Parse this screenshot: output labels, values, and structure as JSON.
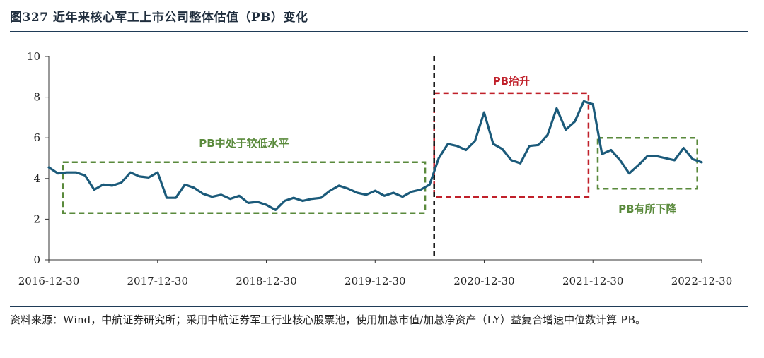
{
  "header": {
    "title": "图327 近年来核心军工上市公司整体估值（PB）变化"
  },
  "footer": {
    "source": "资料来源：Wind，中航证券研究所；采用中航证券军工行业核心股票池，使用加总市值/加总净资产（LY）益复合增速中位数计算 PB。"
  },
  "colors": {
    "line": "#1b5a7a",
    "green": "#5a8a3c",
    "red": "#c0202a",
    "axis": "#333333"
  },
  "chart_data": {
    "type": "line",
    "title": "近年来核心军工上市公司整体估值（PB）变化",
    "xlabel": "",
    "ylabel": "",
    "ylim": [
      0,
      10
    ],
    "yticks": [
      "0",
      "2",
      "4",
      "6",
      "8",
      "10"
    ],
    "x_start": "2016-12-30",
    "x_end": "2022-12-30",
    "xticks": [
      "2016-12-30",
      "2017-12-30",
      "2018-12-30",
      "2019-12-30",
      "2020-12-30",
      "2021-12-30",
      "2022-12-30"
    ],
    "series": [
      {
        "name": "PB",
        "values": [
          4.55,
          4.25,
          4.3,
          4.3,
          4.15,
          3.45,
          3.7,
          3.65,
          3.8,
          4.3,
          4.1,
          4.05,
          4.3,
          3.05,
          3.05,
          3.7,
          3.55,
          3.25,
          3.1,
          3.2,
          3.0,
          3.15,
          2.8,
          2.85,
          2.7,
          2.45,
          2.9,
          3.05,
          2.9,
          3.0,
          3.05,
          3.4,
          3.65,
          3.5,
          3.3,
          3.2,
          3.4,
          3.15,
          3.3,
          3.1,
          3.35,
          3.45,
          3.7,
          5.0,
          5.7,
          5.6,
          5.4,
          5.85,
          7.25,
          5.7,
          5.45,
          4.9,
          4.75,
          5.6,
          5.65,
          6.15,
          7.45,
          6.4,
          6.8,
          7.8,
          7.65,
          5.2,
          5.4,
          4.9,
          4.25,
          4.65,
          5.1,
          5.1,
          5.0,
          4.9,
          5.5,
          4.95,
          4.8
        ]
      }
    ],
    "divider_date": "2020-07",
    "annotations": [
      {
        "text": "PB中处于较低水平",
        "color": "green",
        "x_from": "2017-02",
        "x_to": "2020-06",
        "y_low": 2.3,
        "y_high": 4.8
      },
      {
        "text": "PB抬升",
        "color": "red",
        "x_from": "2020-07",
        "x_to": "2021-12",
        "y_low": 3.1,
        "y_high": 8.2
      },
      {
        "text": "PB有所下降",
        "color": "green",
        "x_from": "2022-01",
        "x_to": "2022-12",
        "y_low": 3.5,
        "y_high": 6.0
      }
    ]
  }
}
